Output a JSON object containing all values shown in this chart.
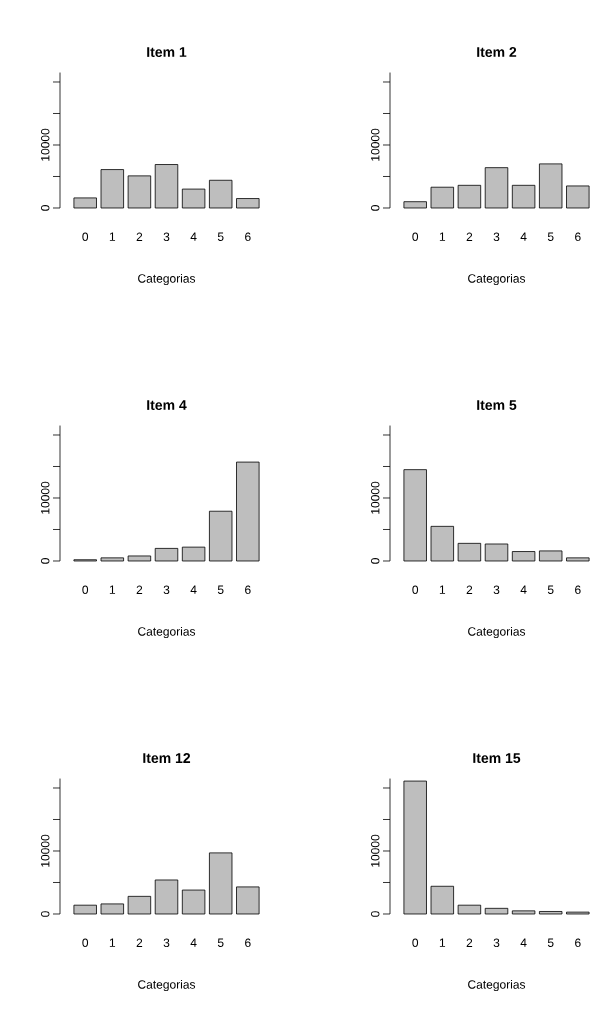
{
  "chart_data": [
    {
      "type": "bar",
      "title": "Item 1",
      "xlabel": "Categorias",
      "categories": [
        "0",
        "1",
        "2",
        "3",
        "4",
        "5",
        "6"
      ],
      "values": [
        1600,
        6100,
        5100,
        6900,
        3000,
        4400,
        1500
      ],
      "color": "#bebebe",
      "ylim": [
        0,
        21500
      ],
      "yticks": [
        0,
        {
          "value": 5000,
          "label": null
        },
        10000,
        {
          "value": 15000,
          "label": null
        },
        {
          "value": 20000,
          "label": null
        }
      ]
    },
    {
      "type": "bar",
      "title": "Item 2",
      "xlabel": "Categorias",
      "categories": [
        "0",
        "1",
        "2",
        "3",
        "4",
        "5",
        "6"
      ],
      "values": [
        1000,
        3300,
        3600,
        6400,
        3600,
        7000,
        3500
      ],
      "color": "#bebebe",
      "ylim": [
        0,
        21500
      ],
      "yticks": [
        0,
        {
          "value": 5000,
          "label": null
        },
        10000,
        {
          "value": 15000,
          "label": null
        },
        {
          "value": 20000,
          "label": null
        }
      ]
    },
    {
      "type": "bar",
      "title": "Item 4",
      "xlabel": "Categorias",
      "categories": [
        "0",
        "1",
        "2",
        "3",
        "4",
        "5",
        "6"
      ],
      "values": [
        200,
        500,
        800,
        2000,
        2200,
        7900,
        15700
      ],
      "color": "#bebebe",
      "ylim": [
        0,
        21500
      ],
      "yticks": [
        0,
        {
          "value": 5000,
          "label": null
        },
        10000,
        {
          "value": 15000,
          "label": null
        },
        {
          "value": 20000,
          "label": null
        }
      ]
    },
    {
      "type": "bar",
      "title": "Item 5",
      "xlabel": "Categorias",
      "categories": [
        "0",
        "1",
        "2",
        "3",
        "4",
        "5",
        "6"
      ],
      "values": [
        14500,
        5500,
        2800,
        2700,
        1500,
        1600,
        500
      ],
      "color": "#bebebe",
      "ylim": [
        0,
        21500
      ],
      "yticks": [
        0,
        {
          "value": 5000,
          "label": null
        },
        10000,
        {
          "value": 15000,
          "label": null
        },
        {
          "value": 20000,
          "label": null
        }
      ]
    },
    {
      "type": "bar",
      "title": "Item 12",
      "xlabel": "Categorias",
      "categories": [
        "0",
        "1",
        "2",
        "3",
        "4",
        "5",
        "6"
      ],
      "values": [
        1400,
        1600,
        2800,
        5400,
        3800,
        9700,
        4300
      ],
      "color": "#bebebe",
      "ylim": [
        0,
        21500
      ],
      "yticks": [
        0,
        {
          "value": 5000,
          "label": null
        },
        10000,
        {
          "value": 15000,
          "label": null
        },
        {
          "value": 20000,
          "label": null
        }
      ]
    },
    {
      "type": "bar",
      "title": "Item 15",
      "xlabel": "Categorias",
      "categories": [
        "0",
        "1",
        "2",
        "3",
        "4",
        "5",
        "6"
      ],
      "values": [
        21100,
        4400,
        1400,
        900,
        500,
        400,
        300
      ],
      "color": "#bebebe",
      "ylim": [
        0,
        21500
      ],
      "yticks": [
        0,
        {
          "value": 5000,
          "label": null
        },
        10000,
        {
          "value": 15000,
          "label": null
        },
        {
          "value": 20000,
          "label": null
        }
      ]
    }
  ]
}
